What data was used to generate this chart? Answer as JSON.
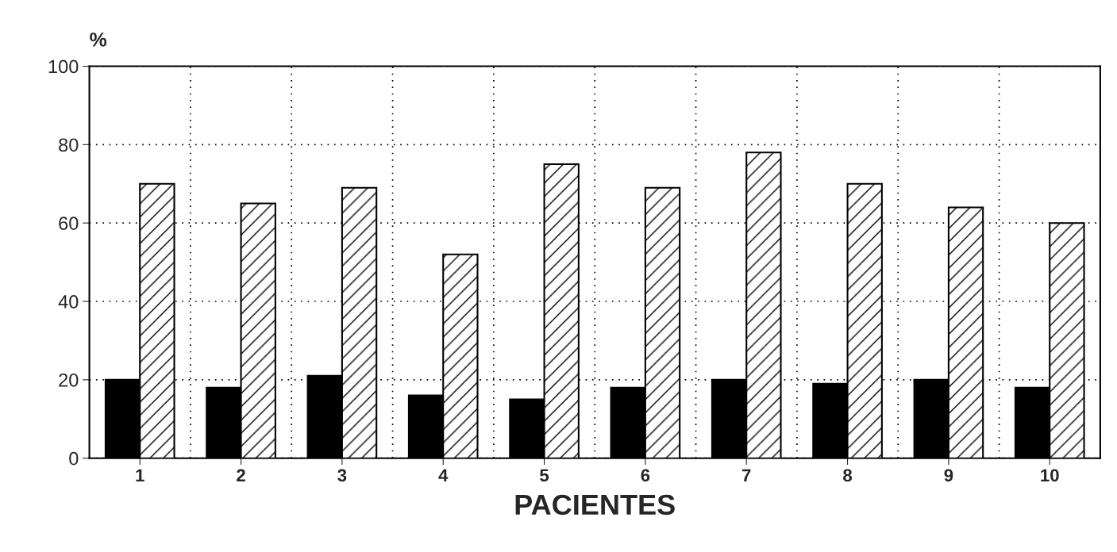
{
  "chart_data": {
    "type": "bar",
    "ylabel": "%",
    "xlabel": "PACIENTES",
    "categories": [
      "1",
      "2",
      "3",
      "4",
      "5",
      "6",
      "7",
      "8",
      "9",
      "10"
    ],
    "series": [
      {
        "color": "#000000",
        "values": [
          20,
          18,
          21,
          16,
          15,
          18,
          20,
          19,
          20,
          18
        ]
      },
      {
        "color": "#ffffff",
        "values": [
          70,
          65,
          69,
          52,
          75,
          69,
          78,
          70,
          64,
          60
        ]
      }
    ],
    "ylim": [
      0,
      100
    ],
    "yticks": [
      0,
      20,
      40,
      60,
      80,
      100
    ],
    "grid": true
  }
}
